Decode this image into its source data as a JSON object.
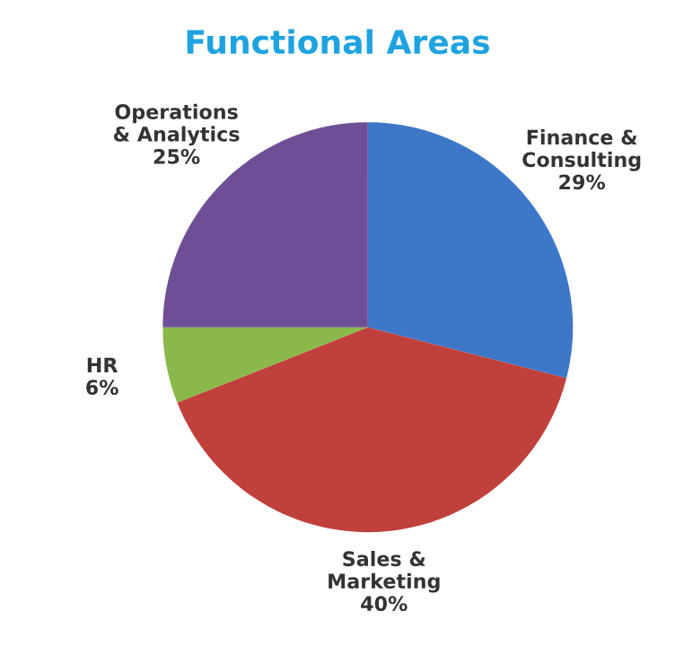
{
  "chart_data": {
    "type": "pie",
    "title": "Functional Areas",
    "categories": [
      "Finance &\nConsulting",
      "Sales &\nMarketing",
      "HR",
      "Operations\n& Analytics"
    ],
    "values": [
      29,
      40,
      6,
      25
    ],
    "value_labels": [
      "29%",
      "40%",
      "6%",
      "25%"
    ],
    "colors": [
      "#3d78c8",
      "#c0403c",
      "#8ab84a",
      "#6e4f96"
    ]
  }
}
